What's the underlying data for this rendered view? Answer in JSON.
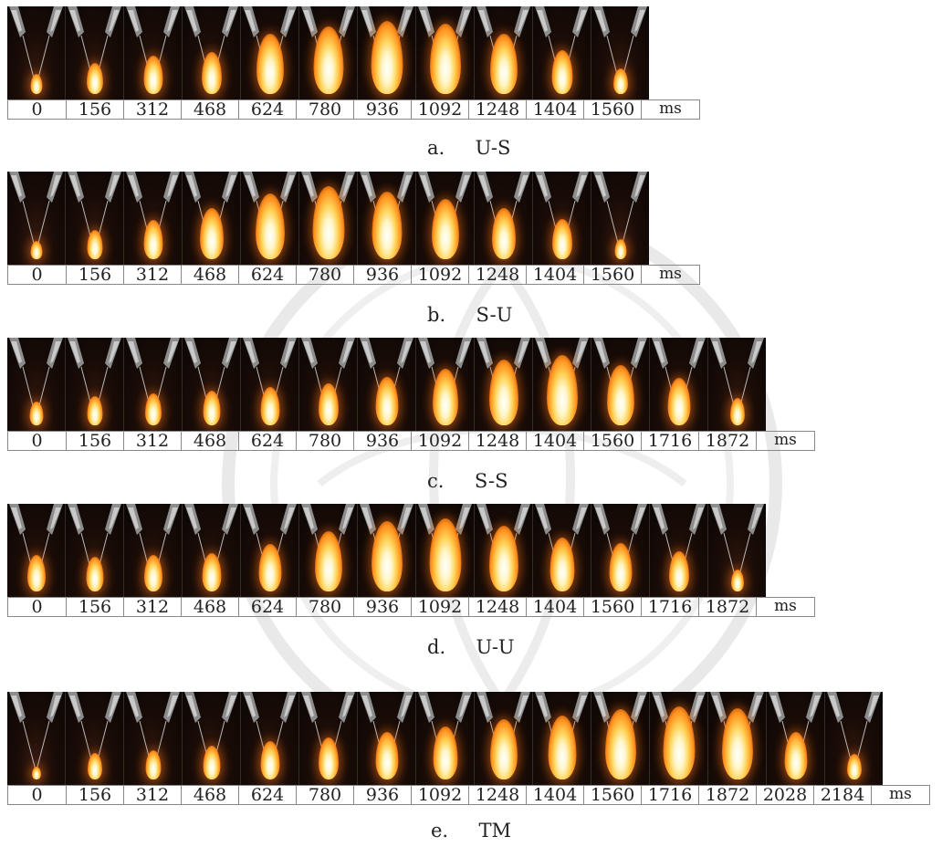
{
  "time_unit": "ms",
  "panels": [
    {
      "caption": "a.     U-S",
      "times": [
        "0",
        "156",
        "312",
        "468",
        "624",
        "780",
        "936",
        "1092",
        "1248",
        "1404",
        "1560"
      ],
      "flame_levels": [
        0.18,
        0.32,
        0.42,
        0.48,
        0.72,
        0.82,
        0.9,
        0.86,
        0.72,
        0.5,
        0.25
      ]
    },
    {
      "caption": "b.     S-U",
      "times": [
        "0",
        "156",
        "312",
        "468",
        "624",
        "780",
        "936",
        "1092",
        "1248",
        "1404",
        "1560"
      ],
      "flame_levels": [
        0.15,
        0.3,
        0.44,
        0.6,
        0.8,
        0.9,
        0.82,
        0.72,
        0.6,
        0.45,
        0.18
      ]
    },
    {
      "caption": "c.     S-S",
      "times": [
        "0",
        "156",
        "312",
        "468",
        "624",
        "780",
        "936",
        "1092",
        "1248",
        "1404",
        "1560",
        "1716",
        "1872"
      ],
      "flame_levels": [
        0.22,
        0.3,
        0.34,
        0.38,
        0.42,
        0.48,
        0.56,
        0.68,
        0.8,
        0.86,
        0.72,
        0.55,
        0.28
      ]
    },
    {
      "caption": "d.     U-U",
      "times": [
        "0",
        "156",
        "312",
        "468",
        "624",
        "780",
        "936",
        "1092",
        "1248",
        "1404",
        "1560",
        "1716",
        "1872"
      ],
      "flame_levels": [
        0.4,
        0.38,
        0.4,
        0.42,
        0.55,
        0.72,
        0.86,
        0.9,
        0.8,
        0.64,
        0.56,
        0.45,
        0.2
      ]
    },
    {
      "caption": "e.     TM",
      "times": [
        "0",
        "156",
        "312",
        "468",
        "624",
        "780",
        "936",
        "1092",
        "1248",
        "1404",
        "1560",
        "1716",
        "1872",
        "2028",
        "2184"
      ],
      "flame_levels": [
        0.08,
        0.26,
        0.3,
        0.36,
        0.42,
        0.48,
        0.55,
        0.62,
        0.72,
        0.78,
        0.86,
        0.9,
        0.88,
        0.55,
        0.25
      ]
    }
  ]
}
